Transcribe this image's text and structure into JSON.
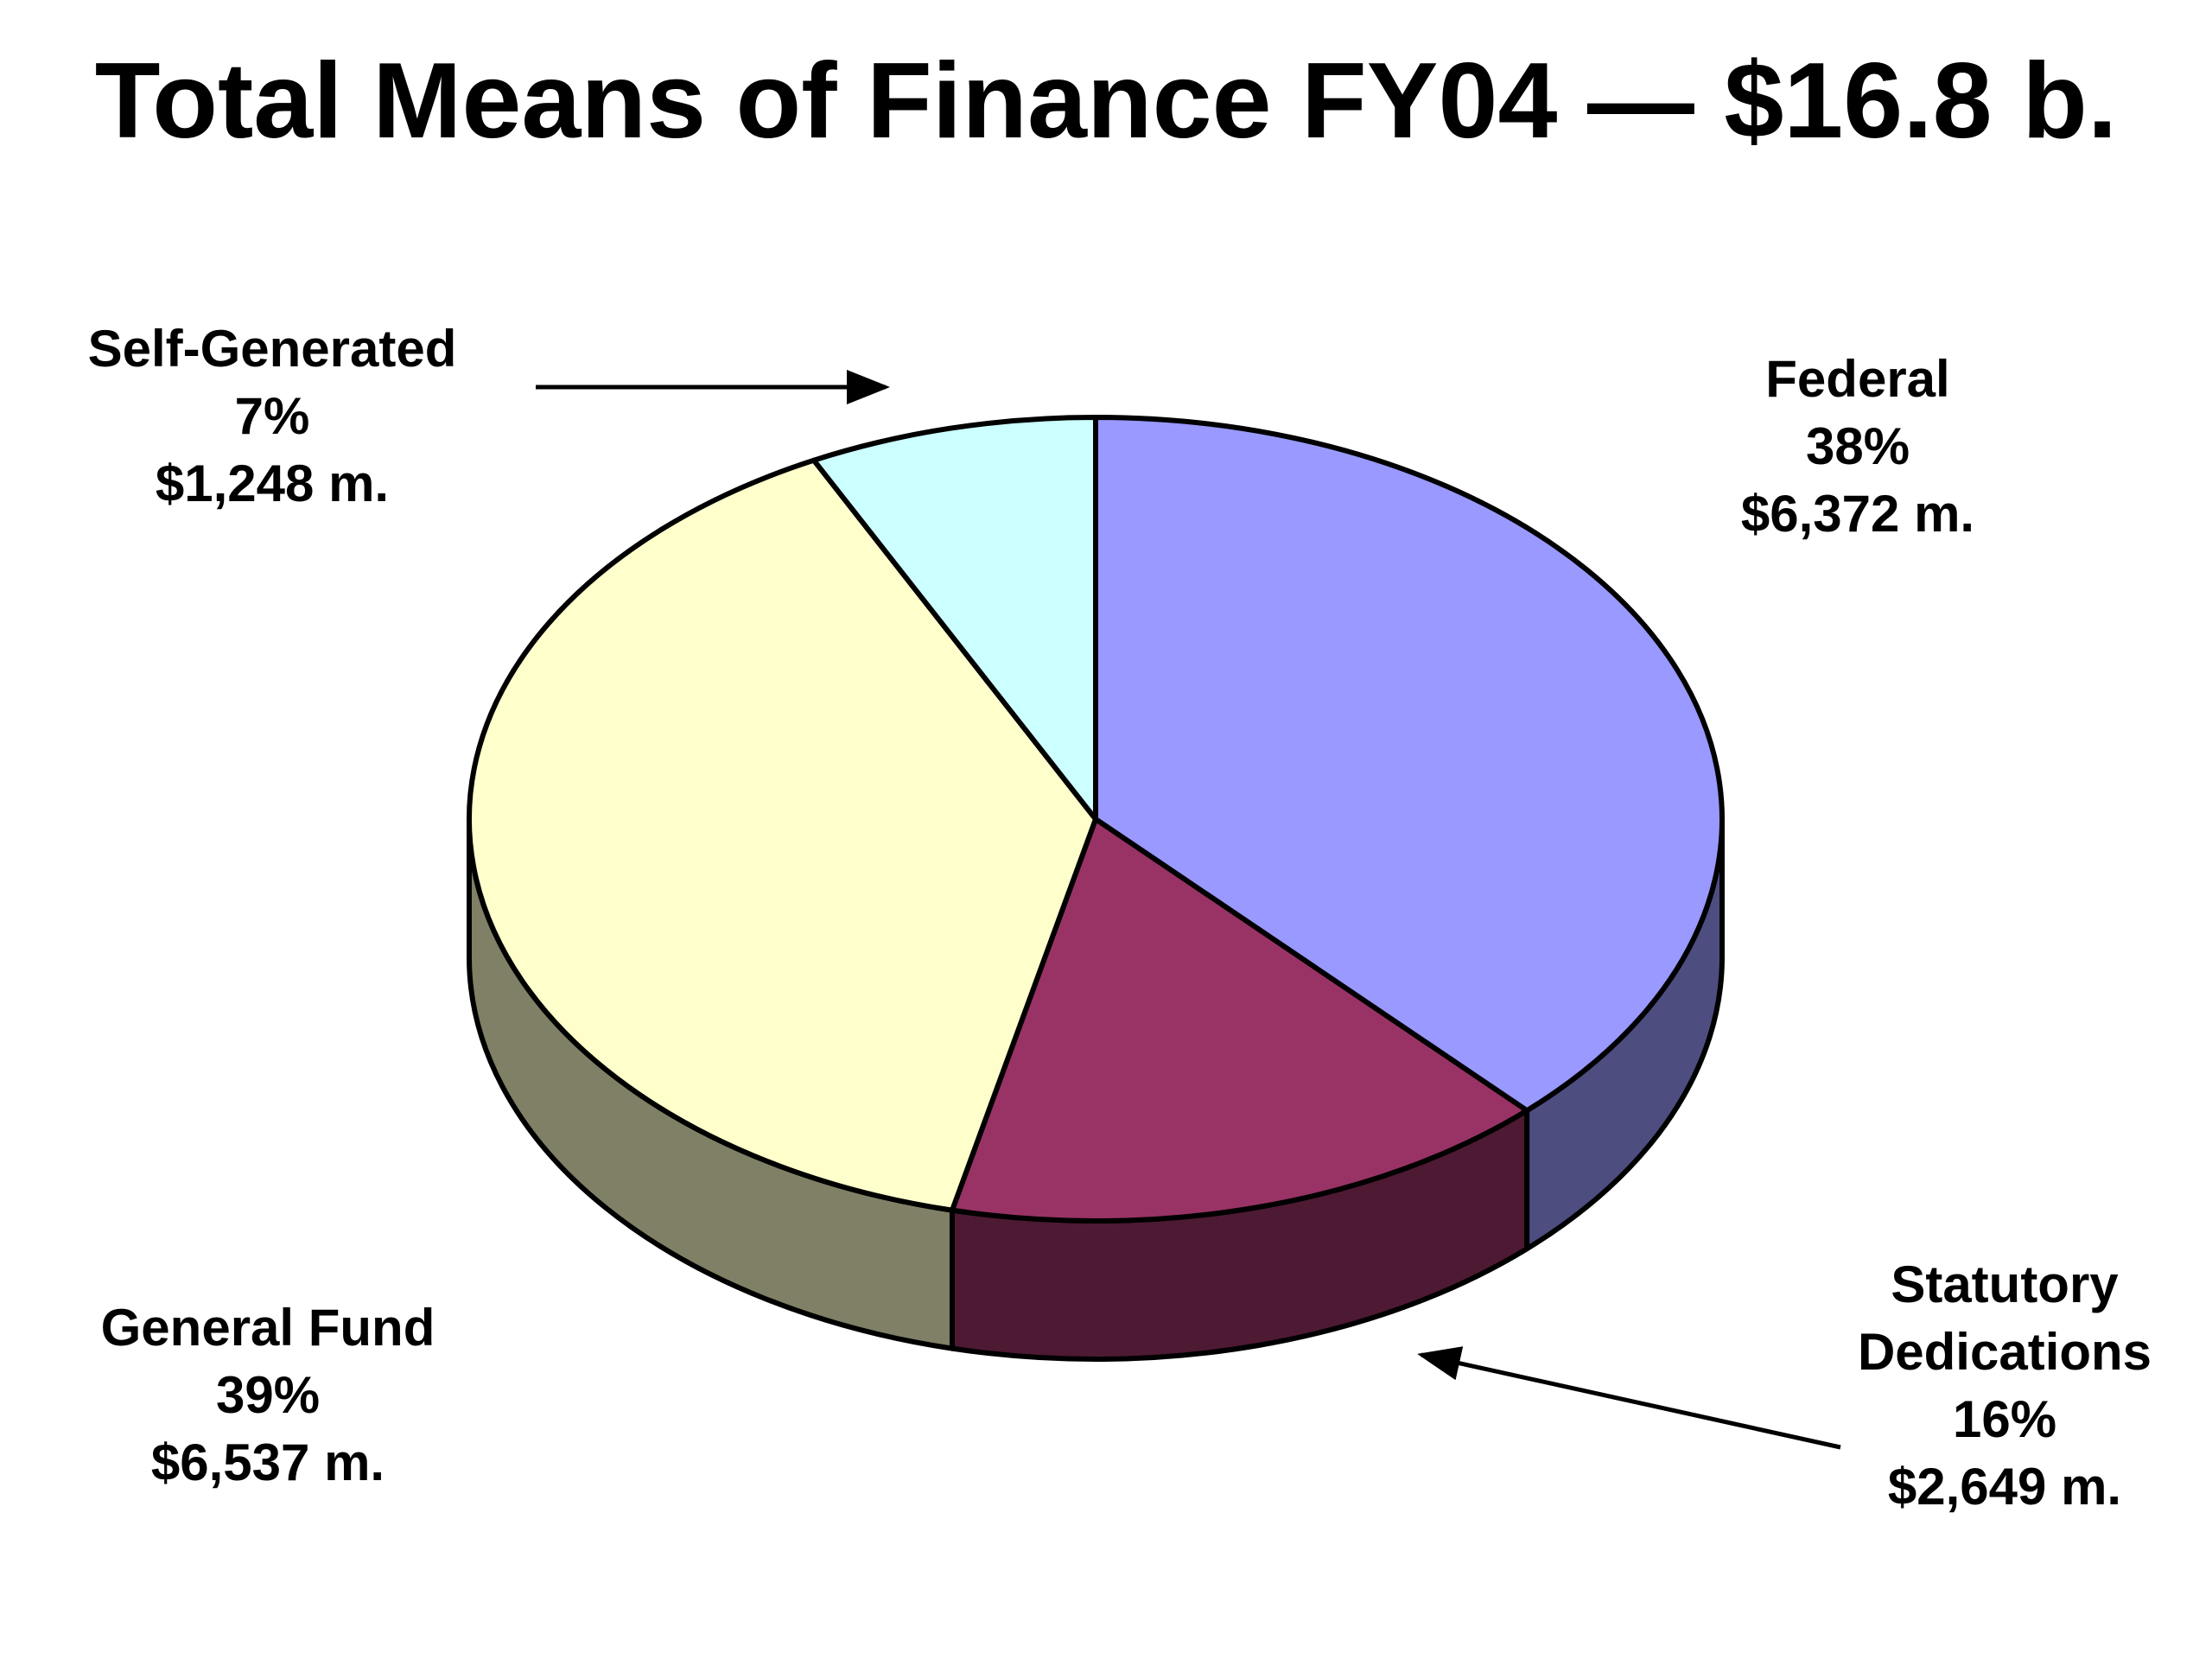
{
  "title": "Total Means of Finance FY04 — $16.8 b.",
  "chart_data": {
    "type": "pie",
    "style": "3d",
    "slices": [
      {
        "name": "Federal",
        "percent_label": "38%",
        "amount_label": "$6,372 m.",
        "value": 6372,
        "color": "#9999ff",
        "side_color": "#4d4d80"
      },
      {
        "name": "Statutory Dedications",
        "name_lines": [
          "Statutory",
          "Dedications"
        ],
        "percent_label": "16%",
        "amount_label": "$2,649 m.",
        "value": 2649,
        "color": "#993366",
        "side_color": "#4d1933"
      },
      {
        "name": "General Fund",
        "percent_label": "39%",
        "amount_label": "$6,537 m.",
        "value": 6537,
        "color": "#ffffcc",
        "side_color": "#808066"
      },
      {
        "name": "Self-Generated",
        "percent_label": "7%",
        "amount_label": "$1,248 m.",
        "value": 1248,
        "color": "#ccffff",
        "side_color": "#668080"
      }
    ]
  }
}
